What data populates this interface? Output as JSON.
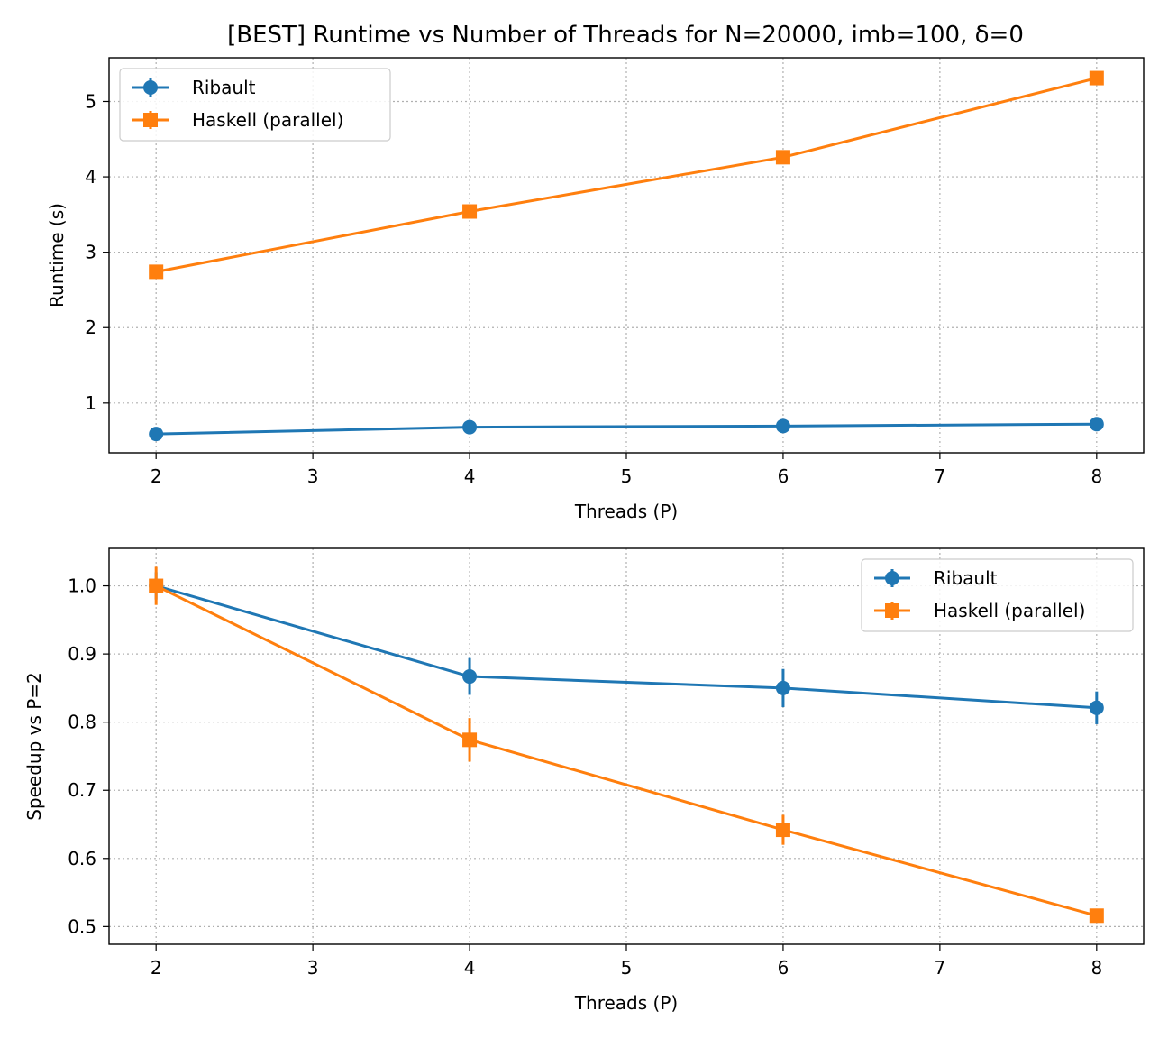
{
  "figure": {
    "title": "[BEST] Runtime vs Number of Threads for  N=20000, imb=100, δ=0"
  },
  "colors": {
    "ribault": "#1f77b4",
    "haskell": "#ff7f0e",
    "grid": "#b0b0b0"
  },
  "chart_data": [
    {
      "type": "line",
      "xlabel": "Threads (P)",
      "ylabel": "Runtime (s)",
      "xlim": [
        1.7,
        8.3
      ],
      "ylim": [
        0.34,
        5.58
      ],
      "xticks": [
        2,
        3,
        4,
        5,
        6,
        7,
        8
      ],
      "yticks": [
        1,
        2,
        3,
        4,
        5
      ],
      "grid": true,
      "legend_position": "top-left",
      "series": [
        {
          "name": "Ribault",
          "color_key": "ribault",
          "marker": "circle",
          "x": [
            2,
            4,
            6,
            8
          ],
          "y": [
            0.59,
            0.68,
            0.695,
            0.72
          ],
          "err": [
            0.01,
            0.01,
            0.01,
            0.01
          ]
        },
        {
          "name": "Haskell (parallel)",
          "color_key": "haskell",
          "marker": "square",
          "x": [
            2,
            4,
            6,
            8
          ],
          "y": [
            2.74,
            3.54,
            4.26,
            5.31
          ],
          "err": [
            0.03,
            0.03,
            0.03,
            0.03
          ]
        }
      ]
    },
    {
      "type": "line",
      "xlabel": "Threads (P)",
      "ylabel": "Speedup vs P=2",
      "xlim": [
        1.7,
        8.3
      ],
      "ylim": [
        0.474,
        1.055
      ],
      "xticks": [
        2,
        3,
        4,
        5,
        6,
        7,
        8
      ],
      "yticks": [
        0.5,
        0.6,
        0.7,
        0.8,
        0.9,
        1.0
      ],
      "ytick_format": "fixed1",
      "grid": true,
      "legend_position": "top-right",
      "series": [
        {
          "name": "Ribault",
          "color_key": "ribault",
          "marker": "circle",
          "x": [
            2,
            4,
            6,
            8
          ],
          "y": [
            1.0,
            0.867,
            0.85,
            0.821
          ],
          "err": [
            0.02,
            0.027,
            0.028,
            0.024
          ]
        },
        {
          "name": "Haskell (parallel)",
          "color_key": "haskell",
          "marker": "square",
          "x": [
            2,
            4,
            6,
            8
          ],
          "y": [
            1.0,
            0.774,
            0.642,
            0.516
          ],
          "err": [
            0.028,
            0.032,
            0.022,
            0.008
          ]
        }
      ]
    }
  ]
}
